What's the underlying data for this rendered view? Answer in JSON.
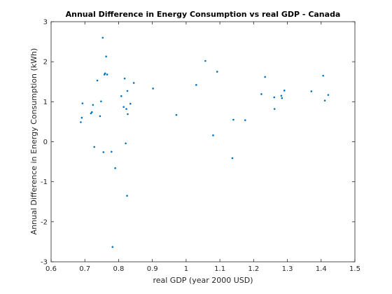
{
  "chart_data": {
    "type": "scatter",
    "title": "Annual Difference in Energy Consumption vs real GDP - Canada",
    "xlabel": "real GDP (year 2000 USD)",
    "ylabel": "Annual Difference in Energy Consumption (kWh)",
    "xlim": [
      0.6,
      1.5
    ],
    "ylim": [
      -3,
      3
    ],
    "xticks": [
      "0.6",
      "0.7",
      "0.8",
      "0.9",
      "1",
      "1.1",
      "1.2",
      "1.3",
      "1.4",
      "1.5"
    ],
    "yticks": [
      "-3",
      "-2",
      "-1",
      "0",
      "1",
      "2",
      "3"
    ],
    "grid": false,
    "marker_color": "#0072bd",
    "series": [
      {
        "points": [
          [
            0.688,
            0.49
          ],
          [
            0.691,
            0.6
          ],
          [
            0.693,
            0.96
          ],
          [
            0.718,
            0.71
          ],
          [
            0.721,
            0.74
          ],
          [
            0.724,
            0.92
          ],
          [
            0.728,
            -0.13
          ],
          [
            0.737,
            1.53
          ],
          [
            0.745,
            0.64
          ],
          [
            0.748,
            1.01
          ],
          [
            0.753,
            2.6
          ],
          [
            0.755,
            -0.26
          ],
          [
            0.758,
            1.68
          ],
          [
            0.76,
            1.71
          ],
          [
            0.763,
            2.13
          ],
          [
            0.766,
            1.68
          ],
          [
            0.779,
            -0.25
          ],
          [
            0.782,
            -2.63
          ],
          [
            0.79,
            -0.66
          ],
          [
            0.808,
            1.14
          ],
          [
            0.815,
            0.87
          ],
          [
            0.818,
            1.58
          ],
          [
            0.821,
            -0.04
          ],
          [
            0.823,
            0.82
          ],
          [
            0.825,
            -1.35
          ],
          [
            0.826,
            1.27
          ],
          [
            0.827,
            0.69
          ],
          [
            0.835,
            0.95
          ],
          [
            0.845,
            1.47
          ],
          [
            0.902,
            1.33
          ],
          [
            0.971,
            0.67
          ],
          [
            1.03,
            1.42
          ],
          [
            1.057,
            2.02
          ],
          [
            1.08,
            0.16
          ],
          [
            1.092,
            1.75
          ],
          [
            1.137,
            -0.41
          ],
          [
            1.14,
            0.55
          ],
          [
            1.175,
            0.54
          ],
          [
            1.223,
            1.19
          ],
          [
            1.234,
            1.62
          ],
          [
            1.261,
            1.11
          ],
          [
            1.262,
            0.82
          ],
          [
            1.282,
            1.15
          ],
          [
            1.284,
            1.09
          ],
          [
            1.291,
            1.28
          ],
          [
            1.371,
            1.26
          ],
          [
            1.406,
            1.65
          ],
          [
            1.411,
            1.03
          ],
          [
            1.421,
            1.17
          ]
        ]
      }
    ]
  }
}
